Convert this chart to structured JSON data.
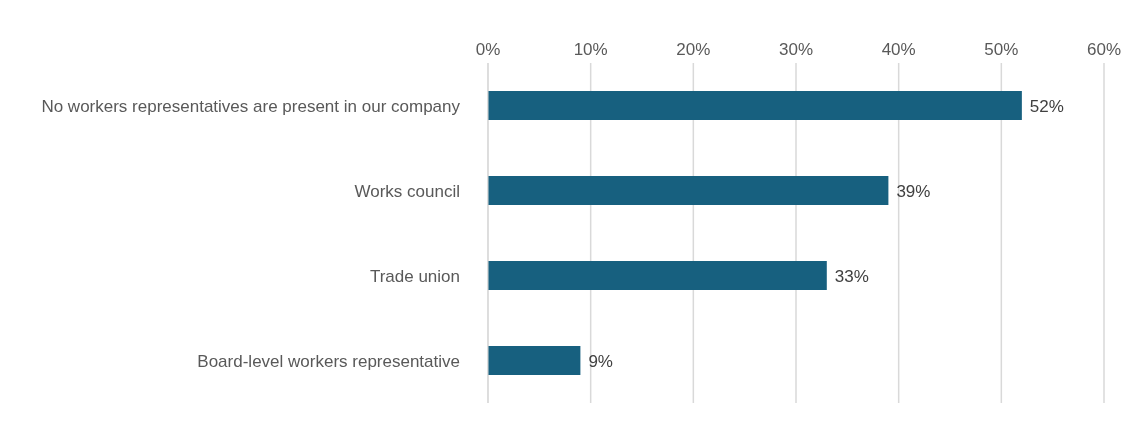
{
  "chart_data": {
    "type": "bar",
    "orientation": "horizontal",
    "categories": [
      "No workers representatives are present in our company",
      "Works council",
      "Trade union",
      "Board-level workers representative"
    ],
    "values": [
      52,
      39,
      33,
      9
    ],
    "value_labels": [
      "52%",
      "39%",
      "33%",
      "9%"
    ],
    "color": "#17607f",
    "xlim": [
      0,
      60
    ],
    "xticks": [
      {
        "value": 0,
        "label": "0%"
      },
      {
        "value": 10,
        "label": "10%"
      },
      {
        "value": 20,
        "label": "20%"
      },
      {
        "value": 30,
        "label": "30%"
      },
      {
        "value": 40,
        "label": "40%"
      },
      {
        "value": 50,
        "label": "50%"
      },
      {
        "value": 60,
        "label": "60%"
      }
    ],
    "grid": "x"
  }
}
